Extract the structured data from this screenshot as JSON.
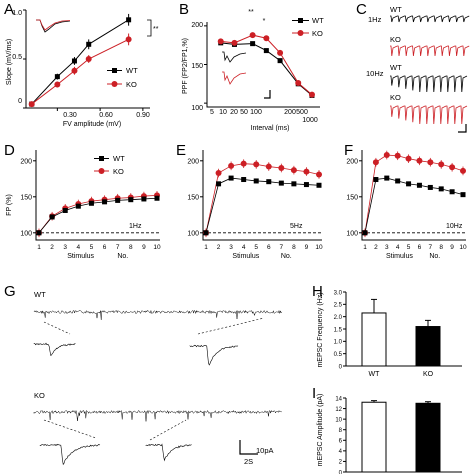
{
  "panels": {
    "A": {
      "letter": "A",
      "ylabel": "Slope (mV/ms)",
      "xlabel": "FV amplitude (mV)",
      "yticks": [
        "0",
        "0.5",
        "1.0"
      ],
      "xticks": [
        "0.30",
        "0.60",
        "0.90"
      ],
      "legend": [
        "WT",
        "KO"
      ],
      "sig": "**"
    },
    "B": {
      "letter": "B",
      "ylabel": "PPF (FP2/FP1,%)",
      "xlabel": "Interval (ms)",
      "yticks": [
        "100",
        "150",
        "200"
      ],
      "xticks": [
        "5",
        "10",
        "20",
        "50",
        "100",
        "200",
        "500",
        "1000"
      ],
      "legend": [
        "WT",
        "KO"
      ],
      "sig": [
        "**",
        "*"
      ]
    },
    "C": {
      "letter": "C",
      "rows": [
        {
          "condition": "1Hz",
          "genotype": "WT"
        },
        {
          "condition": "",
          "genotype": "KO"
        },
        {
          "condition": "10Hz",
          "genotype": "WT"
        },
        {
          "condition": "",
          "genotype": "KO"
        }
      ]
    },
    "D": {
      "letter": "D",
      "ylabel": "FP (%)",
      "freq": "1Hz",
      "legend": [
        "WT",
        "KO"
      ]
    },
    "E": {
      "letter": "E",
      "freq": "5Hz"
    },
    "F": {
      "letter": "F",
      "freq": "10Hz"
    },
    "stim_yticks": [
      "100",
      "150",
      "200"
    ],
    "stim_xticks": [
      "1",
      "2",
      "3",
      "4",
      "5",
      "6",
      "7",
      "8",
      "9",
      "10"
    ],
    "stim_xlabel": [
      "Stimulus",
      "No."
    ],
    "G": {
      "letter": "G",
      "traces": [
        "WT",
        "KO"
      ],
      "scale_time": "2S",
      "scale_amp": "10pA"
    },
    "H": {
      "letter": "H",
      "ylabel": "mEPSC Frequency (Hz)",
      "yticks": [
        "0",
        "0.5",
        "1.0",
        "1.5",
        "2.0",
        "2.5",
        "3.0"
      ],
      "categories": [
        "WT",
        "KO"
      ]
    },
    "I": {
      "letter": "I",
      "ylabel": "mEPSC Amplitude (pA)",
      "yticks": [
        "0",
        "2",
        "4",
        "6",
        "8",
        "10",
        "12",
        "14"
      ],
      "categories": [
        "WT",
        "KO"
      ]
    }
  },
  "colors": {
    "wt": "#000000",
    "ko": "#cc1f25"
  },
  "chart_data": [
    {
      "panel": "A",
      "type": "line",
      "x": [
        0.12,
        0.3,
        0.42,
        0.52,
        0.8
      ],
      "xlim": [
        0.08,
        0.95
      ],
      "ylim": [
        0,
        1.0
      ],
      "series": [
        {
          "name": "WT",
          "values": [
            0.04,
            0.32,
            0.48,
            0.65,
            0.9
          ],
          "errors": [
            0.02,
            0.03,
            0.04,
            0.05,
            0.06
          ]
        },
        {
          "name": "KO",
          "values": [
            0.04,
            0.24,
            0.38,
            0.5,
            0.7
          ],
          "errors": [
            0.02,
            0.03,
            0.04,
            0.04,
            0.06
          ]
        }
      ]
    },
    {
      "panel": "B",
      "type": "line",
      "x": [
        10,
        20,
        50,
        100,
        200,
        500,
        1000
      ],
      "xscale": "log",
      "ylim": [
        95,
        205
      ],
      "series": [
        {
          "name": "WT",
          "values": [
            178,
            176,
            177,
            168,
            155,
            125,
            110
          ]
        },
        {
          "name": "KO",
          "values": [
            180,
            178,
            188,
            184,
            165,
            126,
            111
          ]
        }
      ]
    },
    {
      "panel": "D",
      "type": "line",
      "x": [
        1,
        2,
        3,
        4,
        5,
        6,
        7,
        8,
        9,
        10
      ],
      "ylim": [
        90,
        215
      ],
      "series": [
        {
          "name": "WT",
          "values": [
            100,
            122,
            131,
            137,
            141,
            143,
            145,
            146,
            147,
            148
          ]
        },
        {
          "name": "KO",
          "values": [
            100,
            123,
            134,
            140,
            144,
            146,
            148,
            149,
            151,
            152
          ]
        }
      ]
    },
    {
      "panel": "E",
      "type": "line",
      "x": [
        1,
        2,
        3,
        4,
        5,
        6,
        7,
        8,
        9,
        10
      ],
      "ylim": [
        90,
        215
      ],
      "series": [
        {
          "name": "WT",
          "values": [
            100,
            168,
            176,
            174,
            172,
            171,
            169,
            168,
            167,
            166
          ]
        },
        {
          "name": "KO",
          "values": [
            100,
            183,
            193,
            196,
            195,
            192,
            190,
            187,
            185,
            181
          ]
        }
      ]
    },
    {
      "panel": "F",
      "type": "line",
      "x": [
        1,
        2,
        3,
        4,
        5,
        6,
        7,
        8,
        9,
        10
      ],
      "ylim": [
        90,
        215
      ],
      "series": [
        {
          "name": "WT",
          "values": [
            100,
            174,
            176,
            172,
            168,
            166,
            163,
            161,
            157,
            153
          ]
        },
        {
          "name": "KO",
          "values": [
            100,
            198,
            208,
            207,
            203,
            200,
            198,
            195,
            191,
            186
          ]
        }
      ]
    },
    {
      "panel": "H",
      "type": "bar",
      "categories": [
        "WT",
        "KO"
      ],
      "ylim": [
        0,
        3.0
      ],
      "values": [
        2.15,
        1.6
      ],
      "errors": [
        0.55,
        0.25
      ]
    },
    {
      "panel": "I",
      "type": "bar",
      "categories": [
        "WT",
        "KO"
      ],
      "ylim": [
        0,
        14
      ],
      "values": [
        13.2,
        13.0
      ],
      "errors": [
        0.3,
        0.3
      ]
    }
  ]
}
